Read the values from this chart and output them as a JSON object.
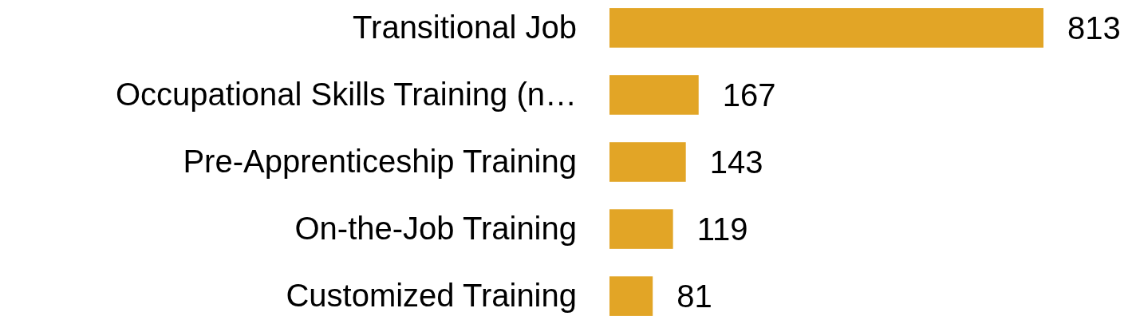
{
  "chart_data": {
    "type": "bar",
    "orientation": "horizontal",
    "categories": [
      "Transitional Job",
      "Occupational Skills Training (n…",
      "Pre-Apprenticeship Training",
      "On-the-Job Training",
      "Customized Training"
    ],
    "values": [
      813,
      167,
      143,
      119,
      81
    ],
    "color": "#e2a526",
    "data_labels": true
  }
}
